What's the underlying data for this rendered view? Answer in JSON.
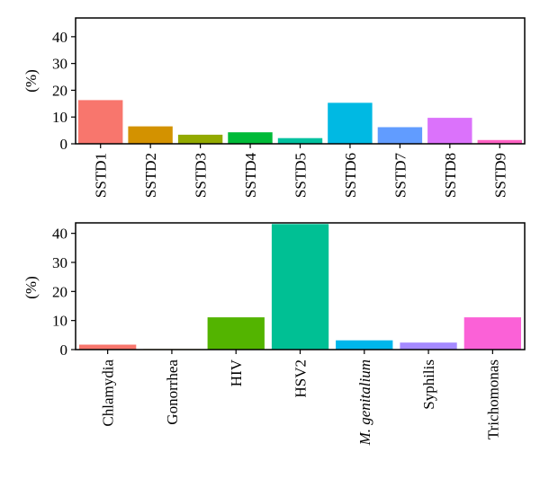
{
  "chart_data": [
    {
      "type": "bar",
      "ylabel": "(%)",
      "xlabel": "",
      "title": "",
      "ylim": [
        0,
        47
      ],
      "yticks": [
        0,
        10,
        20,
        30,
        40
      ],
      "grid": false,
      "categories": [
        "SSTD1",
        "SSTD2",
        "SSTD3",
        "SSTD4",
        "SSTD5",
        "SSTD6",
        "SSTD7",
        "SSTD8",
        "SSTD9"
      ],
      "values": [
        16.3,
        6.5,
        3.4,
        4.3,
        2.1,
        15.3,
        6.2,
        9.7,
        1.4
      ],
      "colors": [
        "#F8766D",
        "#D39200",
        "#93AA00",
        "#00BA38",
        "#00C19F",
        "#00B9E3",
        "#619CFF",
        "#DB72FB",
        "#FF61C3"
      ]
    },
    {
      "type": "bar",
      "ylabel": "(%)",
      "xlabel": "",
      "title": "",
      "ylim": [
        0,
        43.6
      ],
      "yticks": [
        0,
        10,
        20,
        30,
        40
      ],
      "grid": false,
      "categories": [
        "Chlamydia",
        "Gonorrhea",
        "HIV",
        "HSV2",
        "M. genitalium",
        "Syphilis",
        "Trichomonas"
      ],
      "italic_categories": [
        "M. genitalium"
      ],
      "values": [
        1.7,
        0.2,
        11.1,
        43.2,
        3.2,
        2.4,
        11.1
      ],
      "colors": [
        "#F8766D",
        "#C49A00",
        "#53B400",
        "#00C094",
        "#00B6EB",
        "#A58AFF",
        "#FB61D7"
      ]
    }
  ]
}
